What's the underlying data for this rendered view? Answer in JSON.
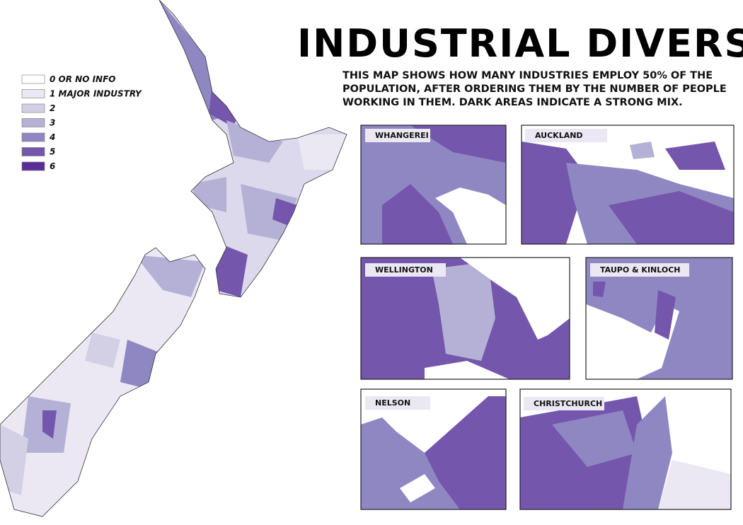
{
  "title": "INDUSTRIAL DIVERSITY",
  "description": [
    "THIS MAP SHOWS HOW MANY INDUSTRIES EMPLOY 50% OF THE",
    "POPULATION, AFTER ORDERING THEM BY THE NUMBER OF PEOPLE",
    "WORKING IN THEM. DARK AREAS INDICATE A STRONG MIX."
  ],
  "legend": [
    {
      "label": "0 OR NO INFO",
      "color": "#ffffff"
    },
    {
      "label": "1 MAJOR INDUSTRY",
      "color": "#ebe8f3"
    },
    {
      "label": "2",
      "color": "#d3d0e6"
    },
    {
      "label": "3",
      "color": "#b5b1d6"
    },
    {
      "label": "4",
      "color": "#8f87c2"
    },
    {
      "label": "5",
      "color": "#7456ad"
    },
    {
      "label": "6",
      "color": "#5b2d9b"
    }
  ],
  "insets": [
    {
      "label": "WHANGEREI"
    },
    {
      "label": "AUCKLAND"
    },
    {
      "label": "WELLINGTON"
    },
    {
      "label": "TAUPO & KINLOCH"
    },
    {
      "label": "NELSON"
    },
    {
      "label": "CHRISTCHURCH"
    }
  ]
}
